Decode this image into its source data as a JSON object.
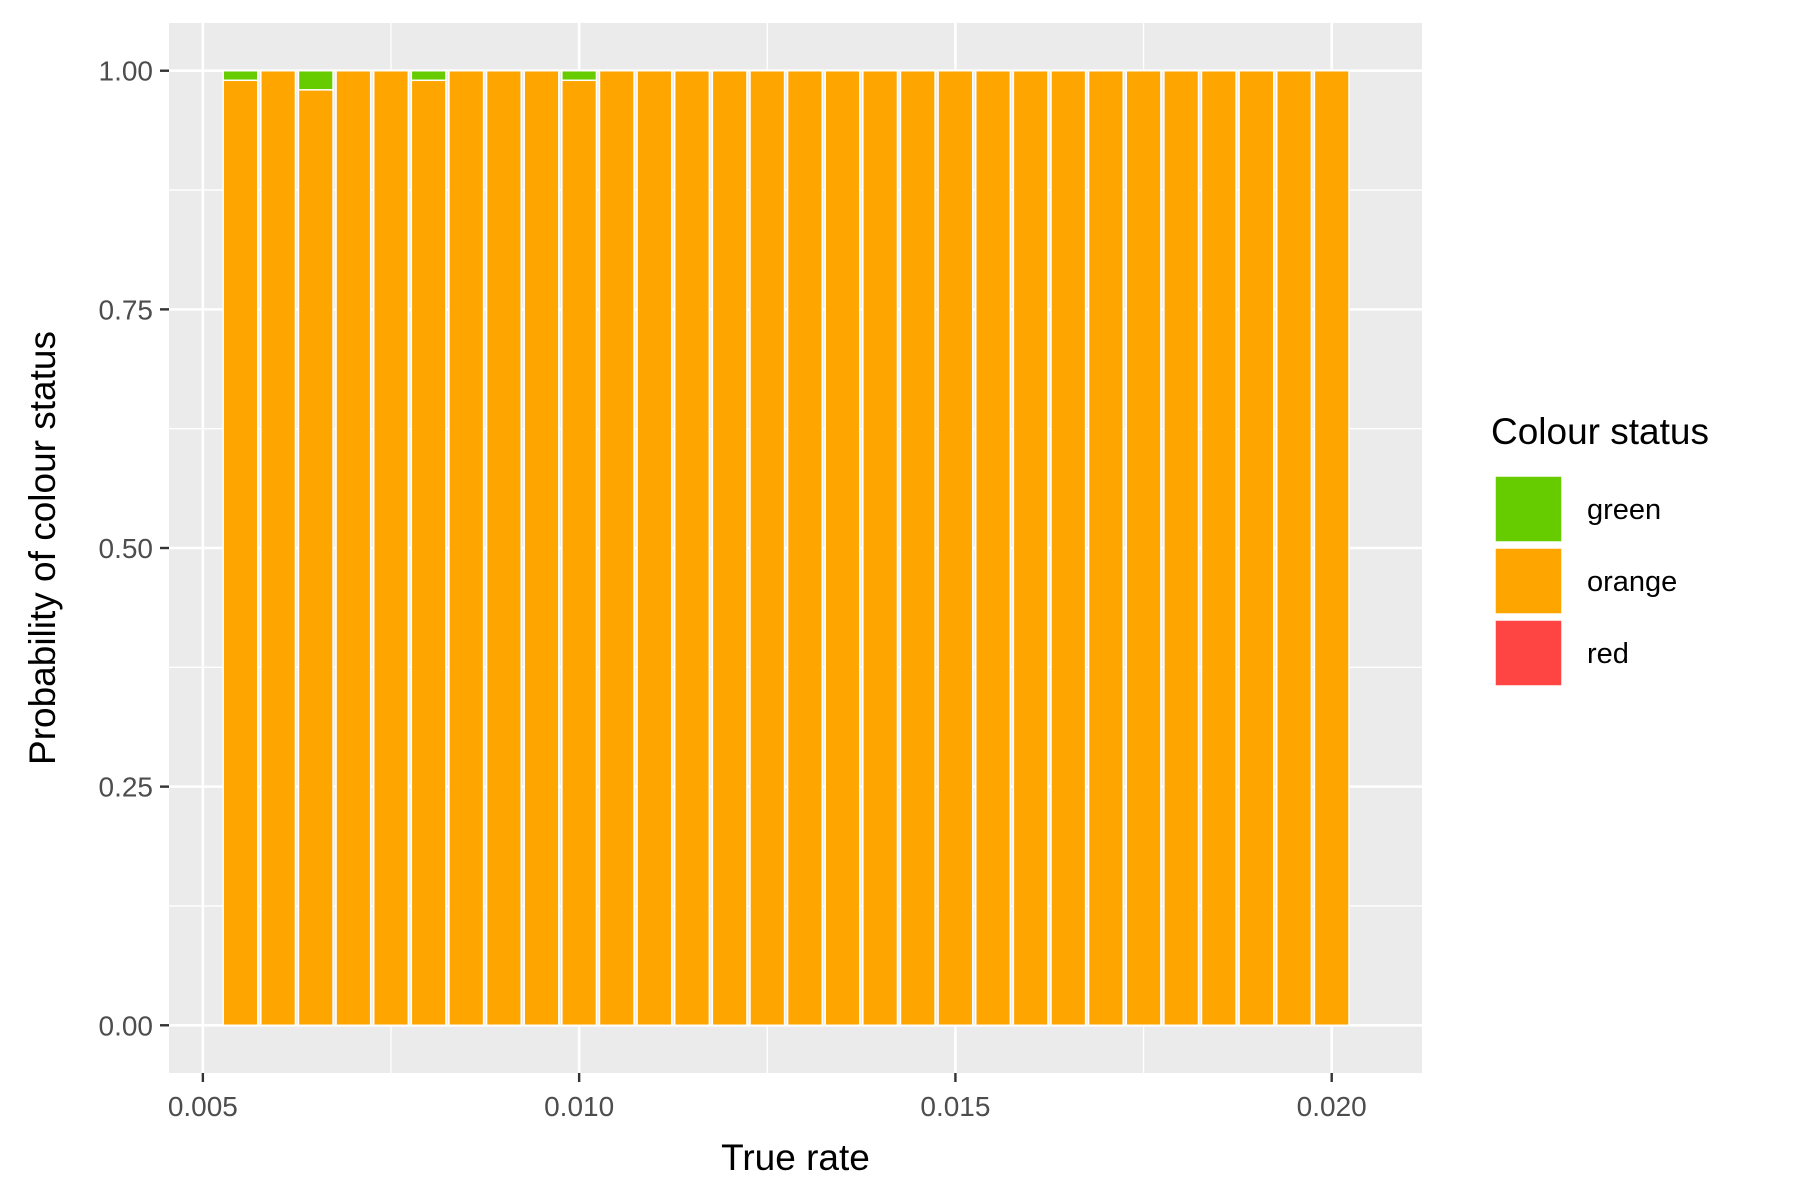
{
  "chart_data": {
    "type": "bar",
    "stacked": true,
    "title": "",
    "xlabel": "True rate",
    "ylabel": "Probability of colour status",
    "xlim": [
      0.00455,
      0.0212
    ],
    "ylim": [
      -0.05,
      1.05
    ],
    "x_ticks": [
      0.005,
      0.01,
      0.015,
      0.02
    ],
    "x_tick_labels": [
      "0.005",
      "0.010",
      "0.015",
      "0.020"
    ],
    "y_ticks": [
      0,
      0.25,
      0.5,
      0.75,
      1
    ],
    "y_tick_labels": [
      "0.00",
      "0.25",
      "0.50",
      "0.75",
      "1.00"
    ],
    "grid": true,
    "background": "#ebebeb",
    "legend": {
      "title": "Colour status",
      "placement": "right",
      "entries": [
        {
          "label": "green",
          "color": "#66cc00"
        },
        {
          "label": "orange",
          "color": "#ffa500"
        },
        {
          "label": "red",
          "color": "#ff4444"
        }
      ]
    },
    "x": [
      0.0055,
      0.006,
      0.0065,
      0.007,
      0.0075,
      0.008,
      0.0085,
      0.009,
      0.0095,
      0.01,
      0.0105,
      0.011,
      0.0115,
      0.012,
      0.0125,
      0.013,
      0.0135,
      0.014,
      0.0145,
      0.015,
      0.0155,
      0.016,
      0.0165,
      0.017,
      0.0175,
      0.018,
      0.0185,
      0.019,
      0.0195,
      0.02
    ],
    "bar_width": 0.00046,
    "series": [
      {
        "name": "red",
        "color": "#ff4444",
        "values": [
          0,
          0,
          0,
          0,
          0,
          0,
          0,
          0,
          0,
          0,
          0,
          0,
          0,
          0,
          0,
          0,
          0,
          0,
          0,
          0,
          0,
          0,
          0,
          0,
          0,
          0,
          0,
          0,
          0,
          0
        ]
      },
      {
        "name": "orange",
        "color": "#ffa500",
        "values": [
          0.99,
          1,
          0.98,
          1,
          1,
          0.99,
          1,
          1,
          1,
          0.99,
          1,
          1,
          1,
          1,
          1,
          1,
          1,
          1,
          1,
          1,
          1,
          1,
          1,
          1,
          1,
          1,
          1,
          1,
          1,
          1
        ]
      },
      {
        "name": "green",
        "color": "#66cc00",
        "values": [
          0.01,
          0,
          0.02,
          0,
          0,
          0.01,
          0,
          0,
          0,
          0.01,
          0,
          0,
          0,
          0,
          0,
          0,
          0,
          0,
          0,
          0,
          0,
          0,
          0,
          0,
          0,
          0,
          0,
          0,
          0,
          0
        ]
      }
    ]
  }
}
